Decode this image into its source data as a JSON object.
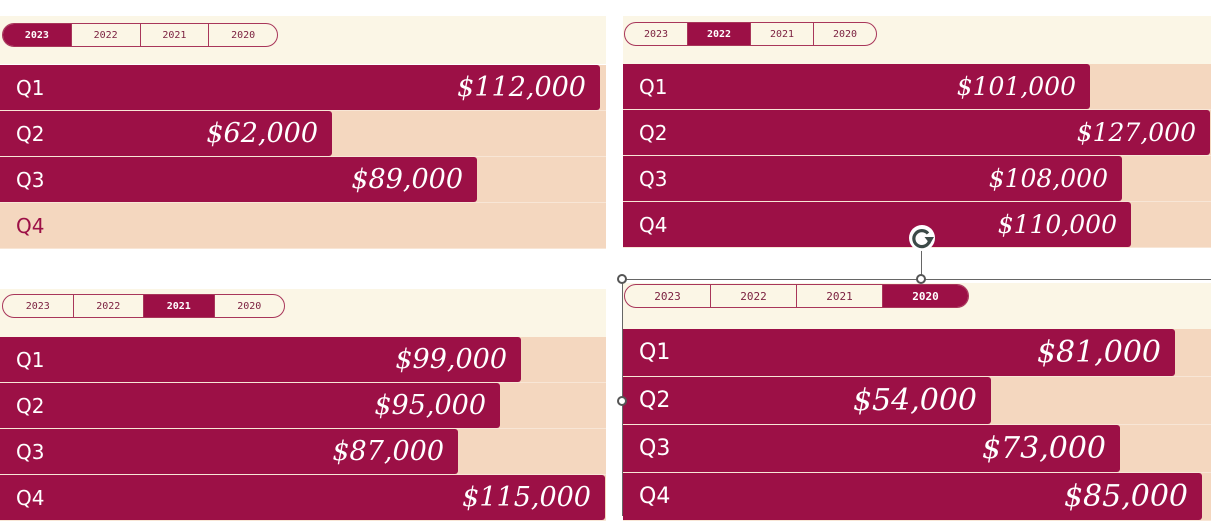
{
  "colors": {
    "bar": "#9c1046",
    "track": "#f4d7bf",
    "tabbar": "#fbf6e6",
    "accent": "#a8365a"
  },
  "panels": [
    {
      "tabs": [
        "2023",
        "2022",
        "2021",
        "2020"
      ],
      "active": "2023",
      "rows": [
        {
          "quarter": "Q1",
          "value": 112000,
          "label": "$112,000"
        },
        {
          "quarter": "Q2",
          "value": 62000,
          "label": "$62,000"
        },
        {
          "quarter": "Q3",
          "value": 89000,
          "label": "$89,000"
        },
        {
          "quarter": "Q4",
          "value": 0,
          "label": ""
        }
      ]
    },
    {
      "tabs": [
        "2023",
        "2022",
        "2021",
        "2020"
      ],
      "active": "2022",
      "rows": [
        {
          "quarter": "Q1",
          "value": 101000,
          "label": "$101,000"
        },
        {
          "quarter": "Q2",
          "value": 127000,
          "label": "$127,000"
        },
        {
          "quarter": "Q3",
          "value": 108000,
          "label": "$108,000"
        },
        {
          "quarter": "Q4",
          "value": 110000,
          "label": "$110,000"
        }
      ]
    },
    {
      "tabs": [
        "2023",
        "2022",
        "2021",
        "2020"
      ],
      "active": "2021",
      "rows": [
        {
          "quarter": "Q1",
          "value": 99000,
          "label": "$99,000"
        },
        {
          "quarter": "Q2",
          "value": 95000,
          "label": "$95,000"
        },
        {
          "quarter": "Q3",
          "value": 87000,
          "label": "$87,000"
        },
        {
          "quarter": "Q4",
          "value": 115000,
          "label": "$115,000"
        }
      ]
    },
    {
      "tabs": [
        "2023",
        "2022",
        "2021",
        "2020"
      ],
      "active": "2020",
      "rows": [
        {
          "quarter": "Q1",
          "value": 81000,
          "label": "$81,000"
        },
        {
          "quarter": "Q2",
          "value": 54000,
          "label": "$54,000"
        },
        {
          "quarter": "Q3",
          "value": 73000,
          "label": "$73,000"
        },
        {
          "quarter": "Q4",
          "value": 85000,
          "label": "$85,000"
        }
      ]
    }
  ]
}
